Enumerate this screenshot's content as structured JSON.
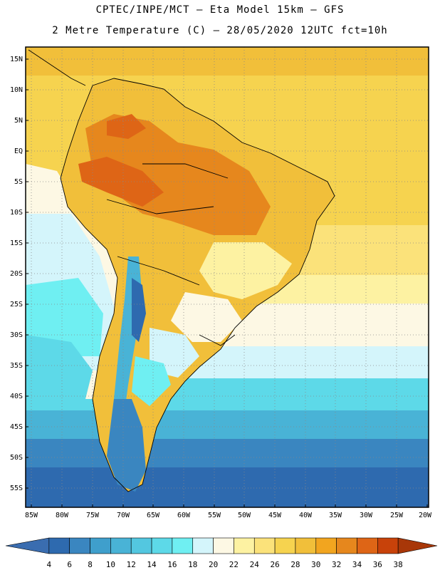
{
  "header": {
    "line1": "CPTEC/INPE/MCT –  Eta Model 15km – GFS",
    "line2": "2 Metre Temperature (C) – 28/05/2020 12UTC fct=10h"
  },
  "map": {
    "lat_labels": [
      "15N",
      "10N",
      "5N",
      "EQ",
      "5S",
      "10S",
      "15S",
      "20S",
      "25S",
      "30S",
      "35S",
      "40S",
      "45S",
      "50S",
      "55S"
    ],
    "lon_labels": [
      "85W",
      "80W",
      "75W",
      "70W",
      "65W",
      "60W",
      "55W",
      "50W",
      "45W",
      "40W",
      "35W",
      "30W",
      "25W",
      "20W"
    ],
    "lat_range": [
      16.5,
      -58.5
    ],
    "lon_range": [
      -85,
      -20
    ],
    "gridlines": "dotted"
  },
  "colorbar": {
    "levels": [
      "4",
      "6",
      "8",
      "10",
      "12",
      "14",
      "16",
      "18",
      "20",
      "22",
      "24",
      "26",
      "28",
      "30",
      "32",
      "34",
      "36",
      "38"
    ],
    "colors": [
      "#3a6db0",
      "#2e6aaf",
      "#3a86c0",
      "#3f9fcc",
      "#49b3d6",
      "#53c7e0",
      "#5dd9e8",
      "#6feff2",
      "#d4f5fb",
      "#fdf8e4",
      "#fdf2a2",
      "#fbe27a",
      "#f6d34f",
      "#f1bf3a",
      "#f2a51f",
      "#e6871d",
      "#de6516",
      "#c8420a",
      "#a83708"
    ]
  }
}
